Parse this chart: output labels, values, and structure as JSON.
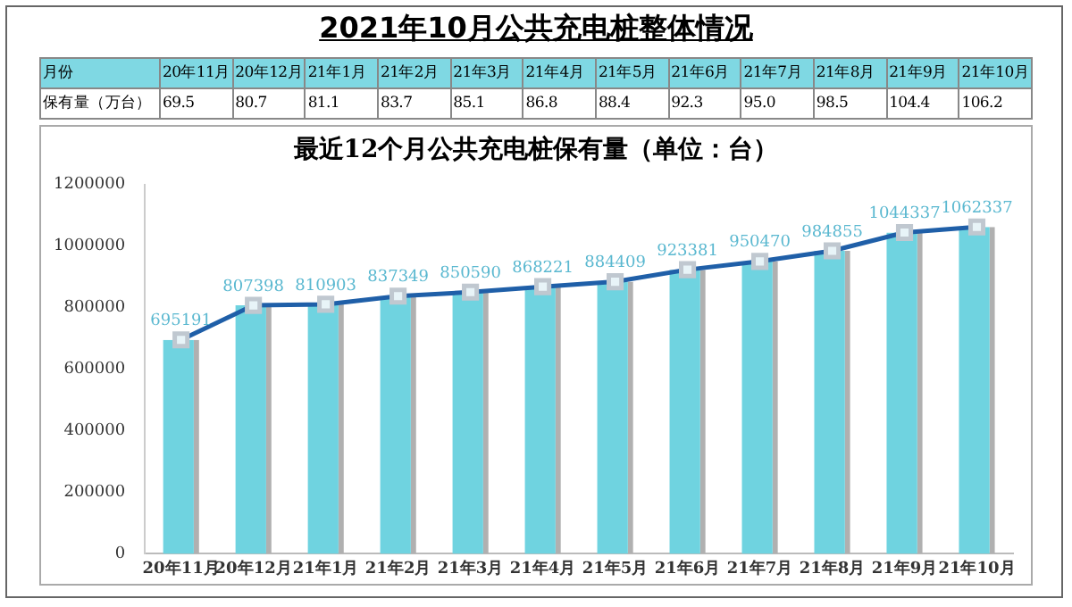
{
  "chart_data": {
    "type": "bar",
    "title": "2021年10月公共充电桩整体情况",
    "subtitle": "最近12个月公共充电桩保有量（单位：台）",
    "categories": [
      "20年11月",
      "20年12月",
      "21年1月",
      "21年2月",
      "21年3月",
      "21年4月",
      "21年5月",
      "21年6月",
      "21年7月",
      "21年8月",
      "21年9月",
      "21年10月"
    ],
    "series": [
      {
        "color": "#6fd3e0",
        "values": [
          695191,
          807398,
          810903,
          837349,
          850590,
          868221,
          884409,
          923381,
          950470,
          984855,
          1044337,
          1062337
        ]
      },
      {
        "type": "line",
        "color": "#1f5fa8",
        "marker": "square",
        "values": [
          695191,
          807398,
          810903,
          837349,
          850590,
          868221,
          884409,
          923381,
          950470,
          984855,
          1044337,
          1062337
        ],
        "value_labels": [
          "695191",
          "807398",
          "810903",
          "837349",
          "850590",
          "868221",
          "884409",
          "923381",
          "950470",
          "984855",
          "1044337",
          "1062337"
        ]
      }
    ],
    "ylim": [
      0,
      1200000
    ],
    "yticks": [
      0,
      200000,
      400000,
      600000,
      800000,
      1000000,
      1200000
    ],
    "grid": false,
    "legend": false,
    "annotations": [
      "月份",
      "保有量（万台）",
      "69.5",
      "80.7",
      "81.1",
      "83.7",
      "85.1",
      "86.8",
      "88.4",
      "92.3",
      "95.0",
      "98.5",
      "104.4",
      "106.2"
    ]
  }
}
